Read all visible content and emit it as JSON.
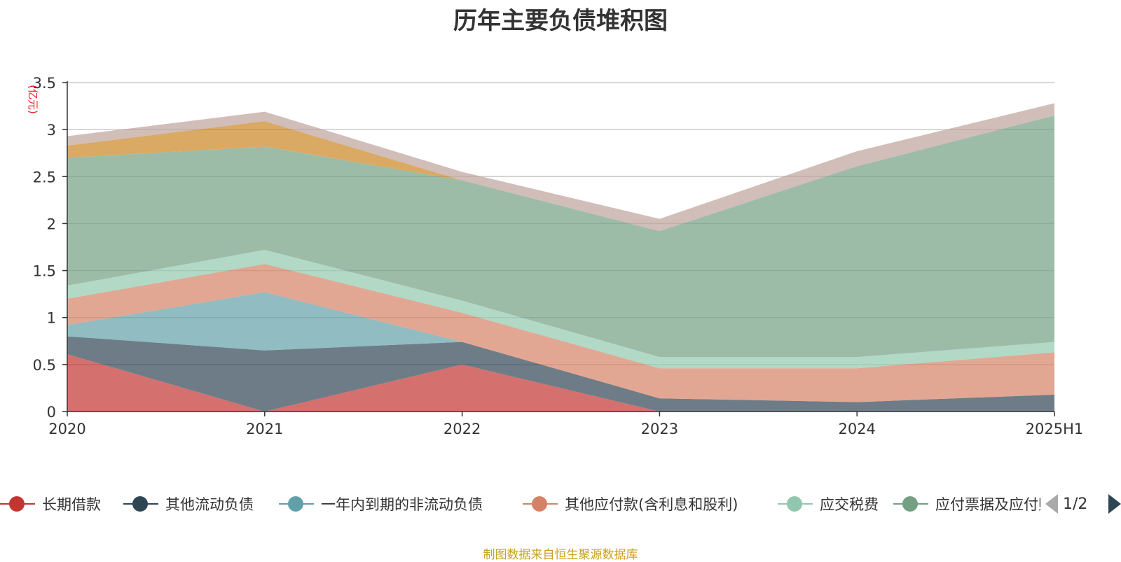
{
  "chart_data": {
    "type": "area",
    "title": "历年主要负债堆积图",
    "ylabel": "(亿元)",
    "xlabel": "",
    "categories": [
      "2020",
      "2021",
      "2022",
      "2023",
      "2024",
      "2025H1"
    ],
    "ylim": [
      0,
      3.5
    ],
    "yticks": [
      "0",
      "0.5",
      "1",
      "1.5",
      "2",
      "2.5",
      "3",
      "3.5"
    ],
    "stacked": true,
    "grid": true,
    "legend_position": "bottom",
    "series": [
      {
        "name": "长期借款",
        "color": "#c23531",
        "values": [
          0.61,
          0.0,
          0.5,
          0.0,
          0.0,
          0.0
        ]
      },
      {
        "name": "其他流动负债",
        "color": "#2f4554",
        "values": [
          0.19,
          0.65,
          0.24,
          0.14,
          0.1,
          0.18
        ]
      },
      {
        "name": "一年内到期的非流动负债",
        "color": "#61a0a8",
        "values": [
          0.12,
          0.62,
          0.0,
          0.0,
          0.0,
          0.0
        ]
      },
      {
        "name": "其他应付款(含利息和股利)",
        "color": "#d48265",
        "values": [
          0.28,
          0.3,
          0.31,
          0.32,
          0.36,
          0.45
        ]
      },
      {
        "name": "应交税费",
        "color": "#91c7ae",
        "values": [
          0.14,
          0.15,
          0.13,
          0.12,
          0.12,
          0.11
        ]
      },
      {
        "name": "应付票据及应付账款",
        "color": "#749f83",
        "values": [
          1.36,
          1.1,
          1.28,
          1.34,
          2.03,
          2.41
        ]
      },
      {
        "name": "",
        "color": "#ca8622",
        "values": [
          0.13,
          0.27,
          0.0,
          0.0,
          0.0,
          0.0
        ]
      },
      {
        "name": "",
        "color": "#bda29a",
        "values": [
          0.1,
          0.1,
          0.09,
          0.13,
          0.16,
          0.13
        ]
      }
    ]
  },
  "legend": {
    "page_text": "1/2",
    "visible_items": [
      "长期借款",
      "其他流动负债",
      "一年内到期的非流动负债",
      "其他应付款(含利息和股利)",
      "应交税费",
      "应付票据及应付账款"
    ]
  },
  "source_note": "制图数据来自恒生聚源数据库"
}
